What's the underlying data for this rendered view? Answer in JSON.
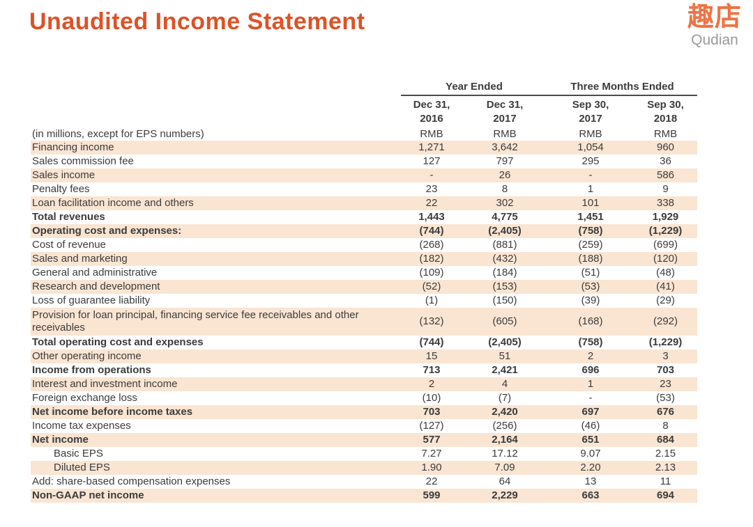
{
  "page": {
    "title": "Unaudited Income Statement",
    "logo_cn": "趣店",
    "logo_en": "Qudian"
  },
  "colors": {
    "title_orange": "#DD5227",
    "logo_orange": "#EE7243",
    "stripe_peach": "#FAE5D2",
    "text_dark": "#3B3B3B"
  },
  "table": {
    "note": "(in millions, except for EPS numbers)",
    "group_headers": [
      {
        "label": "Year Ended"
      },
      {
        "label": "Three Months Ended"
      }
    ],
    "columns": [
      {
        "period": "Dec 31,",
        "year": "2016",
        "unit": "RMB"
      },
      {
        "period": "Dec 31,",
        "year": "2017",
        "unit": "RMB"
      },
      {
        "period": "Sep 30,",
        "year": "2017",
        "unit": "RMB"
      },
      {
        "period": "Sep 30,",
        "year": "2018",
        "unit": "RMB"
      }
    ],
    "rows": [
      {
        "label": "Financing income",
        "values": [
          "1,271",
          "3,642",
          "1,054",
          "960"
        ],
        "bold": false,
        "indent": false,
        "tall": false
      },
      {
        "label": "Sales commission fee",
        "values": [
          "127",
          "797",
          "295",
          "36"
        ],
        "bold": false,
        "indent": false,
        "tall": false
      },
      {
        "label": "Sales income",
        "values": [
          "-",
          "26",
          "-",
          "586"
        ],
        "bold": false,
        "indent": false,
        "tall": false
      },
      {
        "label": "Penalty fees",
        "values": [
          "23",
          "8",
          "1",
          "9"
        ],
        "bold": false,
        "indent": false,
        "tall": false
      },
      {
        "label": "Loan facilitation income and others",
        "values": [
          "22",
          "302",
          "101",
          "338"
        ],
        "bold": false,
        "indent": false,
        "tall": false
      },
      {
        "label": "Total revenues",
        "values": [
          "1,443",
          "4,775",
          "1,451",
          "1,929"
        ],
        "bold": true,
        "indent": false,
        "tall": false
      },
      {
        "label": "Operating cost and expenses:",
        "values": [
          "(744)",
          "(2,405)",
          "(758)",
          "(1,229)"
        ],
        "bold": true,
        "indent": false,
        "tall": false
      },
      {
        "label": "Cost of revenue",
        "values": [
          "(268)",
          "(881)",
          "(259)",
          "(699)"
        ],
        "bold": false,
        "indent": false,
        "tall": false
      },
      {
        "label": "Sales and marketing",
        "values": [
          "(182)",
          "(432)",
          "(188)",
          "(120)"
        ],
        "bold": false,
        "indent": false,
        "tall": false
      },
      {
        "label": "General and administrative",
        "values": [
          "(109)",
          "(184)",
          "(51)",
          "(48)"
        ],
        "bold": false,
        "indent": false,
        "tall": false
      },
      {
        "label": "Research and development",
        "values": [
          "(52)",
          "(153)",
          "(53)",
          "(41)"
        ],
        "bold": false,
        "indent": false,
        "tall": false
      },
      {
        "label": "Loss of guarantee liability",
        "values": [
          "(1)",
          "(150)",
          "(39)",
          "(29)"
        ],
        "bold": false,
        "indent": false,
        "tall": false
      },
      {
        "label": "Provision for loan principal, financing service fee receivables and other receivables",
        "values": [
          "(132)",
          "(605)",
          "(168)",
          "(292)"
        ],
        "bold": false,
        "indent": false,
        "tall": true
      },
      {
        "label": "Total operating cost and expenses",
        "values": [
          "(744)",
          "(2,405)",
          "(758)",
          "(1,229)"
        ],
        "bold": true,
        "indent": false,
        "tall": false
      },
      {
        "label": "Other operating income",
        "values": [
          "15",
          "51",
          "2",
          "3"
        ],
        "bold": false,
        "indent": false,
        "tall": false
      },
      {
        "label": "Income from operations",
        "values": [
          "713",
          "2,421",
          "696",
          "703"
        ],
        "bold": true,
        "indent": false,
        "tall": false
      },
      {
        "label": "Interest and investment income",
        "values": [
          "2",
          "4",
          "1",
          "23"
        ],
        "bold": false,
        "indent": false,
        "tall": false
      },
      {
        "label": "Foreign exchange loss",
        "values": [
          "(10)",
          "(7)",
          "-",
          "(53)"
        ],
        "bold": false,
        "indent": false,
        "tall": false
      },
      {
        "label": "Net income before income taxes",
        "values": [
          "703",
          "2,420",
          "697",
          "676"
        ],
        "bold": true,
        "indent": false,
        "tall": false
      },
      {
        "label": "Income tax expenses",
        "values": [
          "(127)",
          "(256)",
          "(46)",
          "8"
        ],
        "bold": false,
        "indent": false,
        "tall": false
      },
      {
        "label": "Net income",
        "values": [
          "577",
          "2,164",
          "651",
          "684"
        ],
        "bold": true,
        "indent": false,
        "tall": false
      },
      {
        "label": "Basic EPS",
        "values": [
          "7.27",
          "17.12",
          "9.07",
          "2.15"
        ],
        "bold": false,
        "indent": true,
        "tall": false
      },
      {
        "label": "Diluted EPS",
        "values": [
          "1.90",
          "7.09",
          "2.20",
          "2.13"
        ],
        "bold": false,
        "indent": true,
        "tall": false
      },
      {
        "label": "Add: share-based compensation expenses",
        "values": [
          "22",
          "64",
          "13",
          "11"
        ],
        "bold": false,
        "indent": false,
        "tall": false
      },
      {
        "label": "Non-GAAP net income",
        "values": [
          "599",
          "2,229",
          "663",
          "694"
        ],
        "bold": true,
        "indent": false,
        "tall": false
      }
    ]
  }
}
